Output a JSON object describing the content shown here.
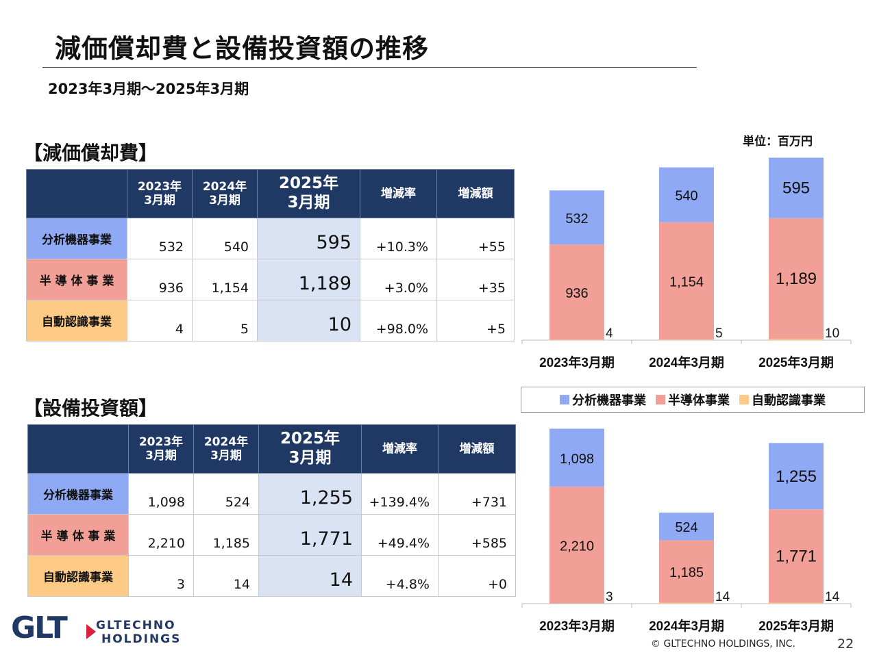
{
  "title": "減価償却費と設備投資額の推移",
  "period": "2023年3月期～2025年3月期",
  "unit": "単位：百万円",
  "sections": {
    "dep": {
      "heading": "【減価償却費】"
    },
    "capex": {
      "heading": "【設備投資額】"
    }
  },
  "table_headers": {
    "y2023": "2023年\n3月期",
    "y2024": "2024年\n3月期",
    "y2025": "2025年\n3月期",
    "rate": "増減率",
    "diff": "増減額"
  },
  "segments": {
    "analytical": "分析機器事業",
    "semiconductor": "半 導 体 事 業",
    "auto_id": "自動認識事業"
  },
  "dep_table": [
    {
      "y2023": "532",
      "y2024": "540",
      "y2025": "595",
      "rate": "+10.3%",
      "diff": "+55"
    },
    {
      "y2023": "936",
      "y2024": "1,154",
      "y2025": "1,189",
      "rate": "+3.0%",
      "diff": "+35"
    },
    {
      "y2023": "4",
      "y2024": "5",
      "y2025": "10",
      "rate": "+98.0%",
      "diff": "+5"
    }
  ],
  "capex_table": [
    {
      "y2023": "1,098",
      "y2024": "524",
      "y2025": "1,255",
      "rate": "+139.4%",
      "diff": "+731"
    },
    {
      "y2023": "2,210",
      "y2024": "1,185",
      "y2025": "1,771",
      "rate": "+49.4%",
      "diff": "+585"
    },
    {
      "y2023": "3",
      "y2024": "14",
      "y2025": "14",
      "rate": "+4.8%",
      "diff": "+0"
    }
  ],
  "legend": {
    "analytical": "分析機器事業",
    "semiconductor": "半導体事業",
    "auto_id": "自動認識事業"
  },
  "colors": {
    "analytical": "#8fa9f5",
    "semiconductor": "#f2a097",
    "auto_id": "#fdcb86",
    "header": "#1f3864",
    "highlight": "#dae3f3"
  },
  "chart_data": [
    {
      "type": "bar",
      "stacked": true,
      "categories": [
        "2023年3月期",
        "2024年3月期",
        "2025年3月期"
      ],
      "series": [
        {
          "name": "自動認識事業",
          "values": [
            4,
            5,
            10
          ]
        },
        {
          "name": "半導体事業",
          "values": [
            936,
            1154,
            1189
          ]
        },
        {
          "name": "分析機器事業",
          "values": [
            532,
            540,
            595
          ]
        }
      ],
      "labels": {
        "自動認識事業": [
          "4",
          "5",
          "10"
        ],
        "半導体事業": [
          "936",
          "1,154",
          "1,189"
        ],
        "分析機器事業": [
          "532",
          "540",
          "595"
        ]
      }
    },
    {
      "type": "bar",
      "stacked": true,
      "categories": [
        "2023年3月期",
        "2024年3月期",
        "2025年3月期"
      ],
      "series": [
        {
          "name": "自動認識事業",
          "values": [
            3,
            14,
            14
          ]
        },
        {
          "name": "半導体事業",
          "values": [
            2210,
            1185,
            1771
          ]
        },
        {
          "name": "分析機器事業",
          "values": [
            1098,
            524,
            1255
          ]
        }
      ],
      "labels": {
        "自動認識事業": [
          "3",
          "14",
          "14"
        ],
        "半導体事業": [
          "2,210",
          "1,185",
          "1,771"
        ],
        "分析機器事業": [
          "1,098",
          "524",
          "1,255"
        ]
      }
    }
  ],
  "logo": {
    "mark": "GLT",
    "line1": "GLTECHNO",
    "line2": "HOLDINGS"
  },
  "copyright": "© GLTECHNO HOLDINGS, INC.",
  "page_number": "22"
}
